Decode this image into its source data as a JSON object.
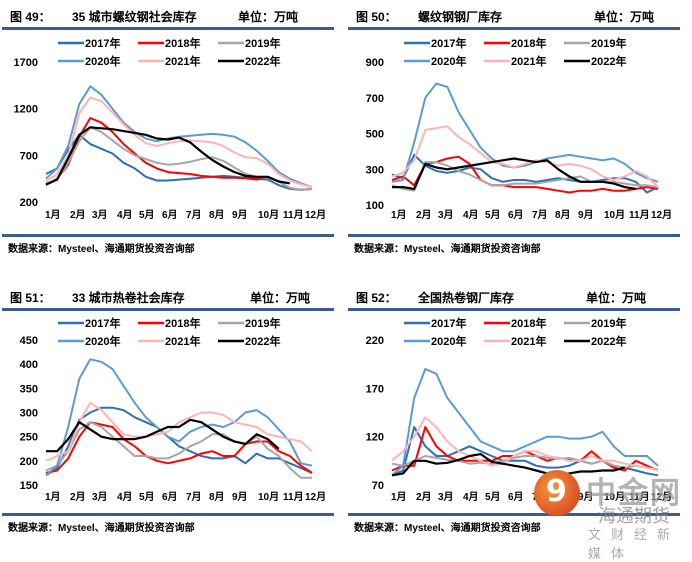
{
  "common": {
    "unit": "单位：万吨",
    "source": "数据来源：Mysteel、海通期货投资咨询部",
    "months": [
      "1月",
      "2月",
      "3月",
      "4月",
      "5月",
      "6月",
      "7月",
      "8月",
      "9月",
      "10月",
      "11月",
      "12月"
    ],
    "legend": [
      "2017年",
      "2018年",
      "2019年",
      "2020年",
      "2021年",
      "2022年"
    ],
    "colors": {
      "2017年": "#2e6fb7",
      "2018年": "#ff0000",
      "2019年": "#a6a6a6",
      "2020年": "#5b9bd5",
      "2021年": "#ffb3b3",
      "2022年": "#000000"
    },
    "rule_color": "#3b5b8c"
  },
  "watermark": {
    "logo": "9",
    "big": "中金网",
    "mid": "海通期货",
    "small": "文财经新媒体"
  },
  "chart_data": [
    {
      "type": "line",
      "figure_no": "图 49：",
      "title": "35 城市螺纹钢社会库存",
      "unit": "单位：万吨",
      "ylim": [
        200,
        1700
      ],
      "yticks": [
        200,
        700,
        1200,
        1700
      ],
      "xlabel": "",
      "ylabel": "万吨",
      "categories": [
        "1月",
        "2月",
        "3月",
        "4月",
        "5月",
        "6月",
        "7月",
        "8月",
        "9月",
        "10月",
        "11月",
        "12月"
      ],
      "legend_position": "top",
      "series": [
        {
          "name": "2017年",
          "values": [
            500,
            560,
            760,
            920,
            820,
            770,
            720,
            620,
            560,
            470,
            430,
            430,
            440,
            450,
            460,
            470,
            480,
            470,
            460,
            450,
            440,
            380,
            340,
            330,
            340
          ]
        },
        {
          "name": "2018年",
          "values": [
            380,
            450,
            600,
            900,
            1100,
            1050,
            950,
            820,
            720,
            620,
            560,
            520,
            510,
            500,
            480,
            470,
            460,
            460,
            455,
            440,
            470,
            420,
            350,
            330,
            340
          ]
        },
        {
          "name": "2019年",
          "values": [
            380,
            440,
            620,
            850,
            1000,
            950,
            860,
            770,
            700,
            660,
            620,
            600,
            610,
            630,
            660,
            680,
            640,
            570,
            500,
            470,
            460,
            420,
            350,
            330,
            340
          ]
        },
        {
          "name": "2020年",
          "values": [
            450,
            560,
            800,
            1250,
            1440,
            1350,
            1200,
            1050,
            950,
            880,
            850,
            880,
            900,
            910,
            920,
            930,
            920,
            900,
            840,
            750,
            640,
            520,
            450,
            400,
            360
          ]
        },
        {
          "name": "2021年",
          "values": [
            420,
            500,
            700,
            1150,
            1320,
            1280,
            1160,
            1030,
            920,
            830,
            800,
            830,
            850,
            860,
            850,
            840,
            800,
            730,
            680,
            670,
            610,
            500,
            430,
            390,
            360
          ]
        },
        {
          "name": "2022年",
          "values": [
            390,
            440,
            670,
            920,
            1000,
            990,
            980,
            960,
            940,
            920,
            880,
            870,
            890,
            840,
            740,
            650,
            580,
            520,
            480,
            470,
            470,
            420,
            400,
            null,
            null
          ]
        }
      ]
    },
    {
      "type": "line",
      "figure_no": "图 50：",
      "title": "螺纹钢钢厂库存",
      "unit": "单位：万吨",
      "ylim": [
        100,
        900
      ],
      "yticks": [
        100,
        300,
        500,
        700,
        900
      ],
      "xlabel": "",
      "ylabel": "万吨",
      "categories": [
        "1月",
        "2月",
        "3月",
        "4月",
        "5月",
        "6月",
        "7月",
        "8月",
        "9月",
        "10月",
        "11月",
        "12月"
      ],
      "legend_position": "top",
      "series": [
        {
          "name": "2017年",
          "values": [
            270,
            250,
            380,
            320,
            290,
            280,
            290,
            310,
            300,
            250,
            230,
            240,
            240,
            230,
            240,
            250,
            240,
            230,
            230,
            240,
            250,
            250,
            230,
            170,
            200
          ]
        },
        {
          "name": "2018年",
          "values": [
            240,
            260,
            210,
            330,
            340,
            360,
            370,
            330,
            240,
            210,
            210,
            200,
            200,
            200,
            190,
            180,
            170,
            180,
            180,
            190,
            180,
            180,
            190,
            200,
            190
          ]
        },
        {
          "name": "2019年",
          "values": [
            210,
            190,
            180,
            340,
            340,
            320,
            290,
            270,
            240,
            210,
            210,
            220,
            220,
            220,
            230,
            240,
            250,
            260,
            230,
            230,
            230,
            220,
            210,
            210,
            200
          ]
        },
        {
          "name": "2020年",
          "values": [
            230,
            240,
            450,
            700,
            780,
            760,
            620,
            520,
            420,
            360,
            320,
            310,
            320,
            340,
            360,
            370,
            380,
            370,
            360,
            350,
            360,
            330,
            280,
            250,
            230
          ]
        },
        {
          "name": "2021年",
          "values": [
            260,
            280,
            350,
            520,
            530,
            540,
            480,
            440,
            390,
            340,
            330,
            310,
            330,
            350,
            340,
            320,
            330,
            320,
            300,
            260,
            240,
            260,
            290,
            260,
            200
          ]
        },
        {
          "name": "2022年",
          "values": [
            200,
            200,
            190,
            330,
            310,
            300,
            310,
            320,
            330,
            340,
            350,
            360,
            350,
            340,
            350,
            300,
            260,
            230,
            230,
            230,
            220,
            200,
            190,
            null,
            null
          ]
        }
      ]
    },
    {
      "type": "line",
      "figure_no": "图 51：",
      "title": "33 城市热卷社会库存",
      "unit": "单位：万吨",
      "ylim": [
        150,
        450
      ],
      "yticks": [
        150,
        200,
        250,
        300,
        350,
        400,
        450
      ],
      "xlabel": "",
      "ylabel": "万吨",
      "categories": [
        "1月",
        "2月",
        "3月",
        "4月",
        "5月",
        "6月",
        "7月",
        "8月",
        "9月",
        "10月",
        "11月",
        "12月"
      ],
      "legend_position": "top",
      "series": [
        {
          "name": "2017年",
          "values": [
            170,
            185,
            230,
            285,
            300,
            310,
            310,
            305,
            290,
            280,
            270,
            250,
            230,
            220,
            210,
            205,
            205,
            210,
            195,
            215,
            205,
            205,
            195,
            185,
            175
          ]
        },
        {
          "name": "2018年",
          "values": [
            175,
            180,
            205,
            250,
            280,
            275,
            270,
            245,
            230,
            210,
            200,
            195,
            200,
            205,
            215,
            220,
            210,
            210,
            235,
            240,
            240,
            220,
            210,
            190,
            175
          ]
        },
        {
          "name": "2019年",
          "values": [
            180,
            190,
            220,
            265,
            280,
            270,
            250,
            230,
            210,
            210,
            205,
            205,
            215,
            230,
            240,
            255,
            255,
            240,
            235,
            250,
            225,
            210,
            185,
            165,
            165
          ]
        },
        {
          "name": "2020年",
          "values": [
            170,
            190,
            270,
            370,
            410,
            405,
            390,
            355,
            320,
            290,
            270,
            250,
            240,
            260,
            270,
            275,
            270,
            280,
            300,
            305,
            290,
            265,
            240,
            195,
            190
          ]
        },
        {
          "name": "2021年",
          "values": [
            200,
            210,
            220,
            280,
            320,
            305,
            280,
            255,
            250,
            250,
            255,
            260,
            280,
            290,
            300,
            300,
            295,
            280,
            275,
            270,
            255,
            250,
            245,
            240,
            220
          ]
        },
        {
          "name": "2022年",
          "values": [
            220,
            220,
            245,
            280,
            265,
            250,
            245,
            245,
            245,
            250,
            260,
            270,
            270,
            285,
            280,
            265,
            250,
            240,
            235,
            255,
            245,
            225,
            null,
            null,
            null
          ]
        }
      ]
    },
    {
      "type": "line",
      "figure_no": "图 52：",
      "title": "全国热卷钢厂库存",
      "unit": "单位：万吨",
      "ylim": [
        70,
        220
      ],
      "yticks": [
        70,
        120,
        170,
        220
      ],
      "xlabel": "",
      "ylabel": "万吨",
      "categories": [
        "1月",
        "2月",
        "3月",
        "4月",
        "5月",
        "6月",
        "7月",
        "8月",
        "9月",
        "10月",
        "11月",
        "12月"
      ],
      "legend_position": "top",
      "series": [
        {
          "name": "2017年",
          "values": [
            80,
            85,
            130,
            110,
            100,
            100,
            105,
            110,
            105,
            100,
            95,
            95,
            95,
            90,
            88,
            88,
            90,
            95,
            92,
            95,
            90,
            88,
            85,
            82,
            80
          ]
        },
        {
          "name": "2018年",
          "values": [
            85,
            90,
            90,
            130,
            110,
            100,
            95,
            95,
            95,
            95,
            100,
            100,
            105,
            100,
            95,
            98,
            96,
            95,
            105,
            95,
            88,
            85,
            95,
            90,
            85
          ]
        },
        {
          "name": "2019年",
          "values": [
            92,
            90,
            95,
            100,
            98,
            96,
            95,
            92,
            93,
            92,
            95,
            98,
            100,
            100,
            98,
            97,
            98,
            95,
            92,
            95,
            90,
            88,
            90,
            88,
            86
          ]
        },
        {
          "name": "2020年",
          "values": [
            80,
            90,
            160,
            190,
            185,
            160,
            145,
            130,
            115,
            110,
            105,
            105,
            110,
            115,
            120,
            120,
            118,
            118,
            120,
            125,
            110,
            100,
            100,
            100,
            90
          ]
        },
        {
          "name": "2021年",
          "values": [
            95,
            105,
            120,
            140,
            130,
            115,
            105,
            100,
            95,
            90,
            92,
            100,
            105,
            105,
            100,
            98,
            95,
            95,
            100,
            95,
            95,
            92,
            90,
            88,
            85
          ]
        },
        {
          "name": "2022年",
          "values": [
            80,
            82,
            95,
            95,
            92,
            93,
            96,
            100,
            102,
            94,
            92,
            90,
            88,
            85,
            82,
            80,
            82,
            84,
            84,
            85,
            85,
            88,
            null,
            null,
            null
          ]
        }
      ]
    }
  ]
}
